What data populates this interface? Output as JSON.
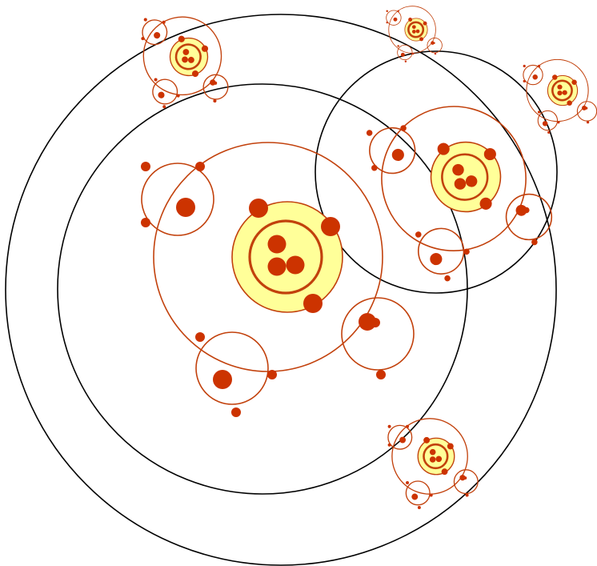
{
  "diagram": {
    "description_free": true,
    "colors": {
      "background": "#ffffff",
      "outline": "#000000",
      "orbit": "#c2410c",
      "particle": "#cc3300",
      "core_fill": "#ffff99",
      "core_stroke": "#c2410c"
    },
    "nested_structure": {
      "large_rings": 3,
      "atom_systems": 6,
      "satellites_per_system": 3,
      "moons_per_satellite": 2,
      "nucleus_particles_per_core": 3
    }
  }
}
